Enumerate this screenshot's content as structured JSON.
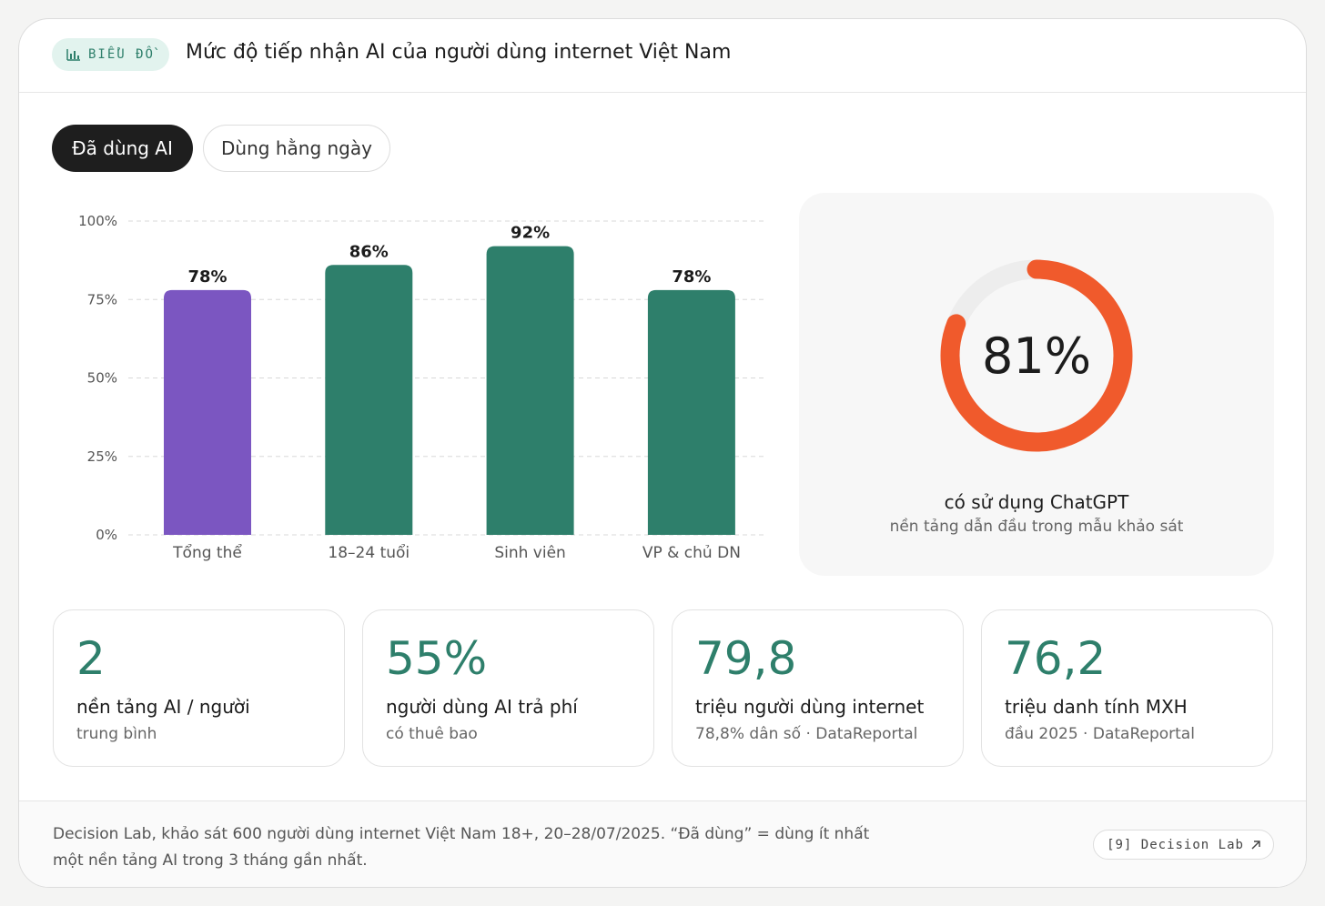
{
  "header": {
    "badge_label": "BIỂU ĐỒ",
    "badge_icon": "bar-chart-icon",
    "title": "Mức độ tiếp nhận AI của người dùng internet Việt Nam"
  },
  "toggles": {
    "active_label": "Đã dùng AI",
    "inactive_label": "Dùng hằng ngày"
  },
  "chart_data": {
    "type": "bar",
    "categories": [
      "Tổng thể",
      "18–24 tuổi",
      "Sinh viên",
      "VP & chủ DN"
    ],
    "values": [
      78,
      86,
      92,
      78
    ],
    "value_labels": [
      "78%",
      "86%",
      "92%",
      "78%"
    ],
    "bar_colors": [
      "#7b56c1",
      "#2e7f6b",
      "#2e7f6b",
      "#2e7f6b"
    ],
    "ylim": [
      0,
      100
    ],
    "yticks": [
      0,
      25,
      50,
      75,
      100
    ],
    "ytick_labels": [
      "0%",
      "25%",
      "50%",
      "75%",
      "100%"
    ],
    "grid": true,
    "xlabel": "",
    "ylabel": ""
  },
  "donut": {
    "value": 81,
    "value_label": "81%",
    "caption": "có sử dụng ChatGPT",
    "subcaption": "nền tảng dẫn đầu trong mẫu khảo sát",
    "color": "#f05a2c",
    "track_color": "#ededed"
  },
  "stats": [
    {
      "value": "2",
      "label": "nền tảng AI / người",
      "sub": "trung bình"
    },
    {
      "value": "55%",
      "label": "người dùng AI trả phí",
      "sub": "có thuê bao"
    },
    {
      "value": "79,8",
      "label": "triệu người dùng internet",
      "sub": "78,8% dân số · DataReportal"
    },
    {
      "value": "76,2",
      "label": "triệu danh tính MXH",
      "sub": "đầu 2025 · DataReportal"
    }
  ],
  "footer": {
    "note_line1": "Decision Lab, khảo sát 600 người dùng internet Việt Nam 18+, 20–28/07/2025. “Đã dùng” = dùng ít nhất",
    "note_line2": "một nền tảng AI trong 3 tháng gần nhất.",
    "source_label": "[9] Decision Lab",
    "source_icon": "external-link-icon"
  },
  "colors": {
    "accent_green": "#2e7f6b",
    "accent_purple": "#7b56c1",
    "accent_orange": "#f05a2c"
  }
}
